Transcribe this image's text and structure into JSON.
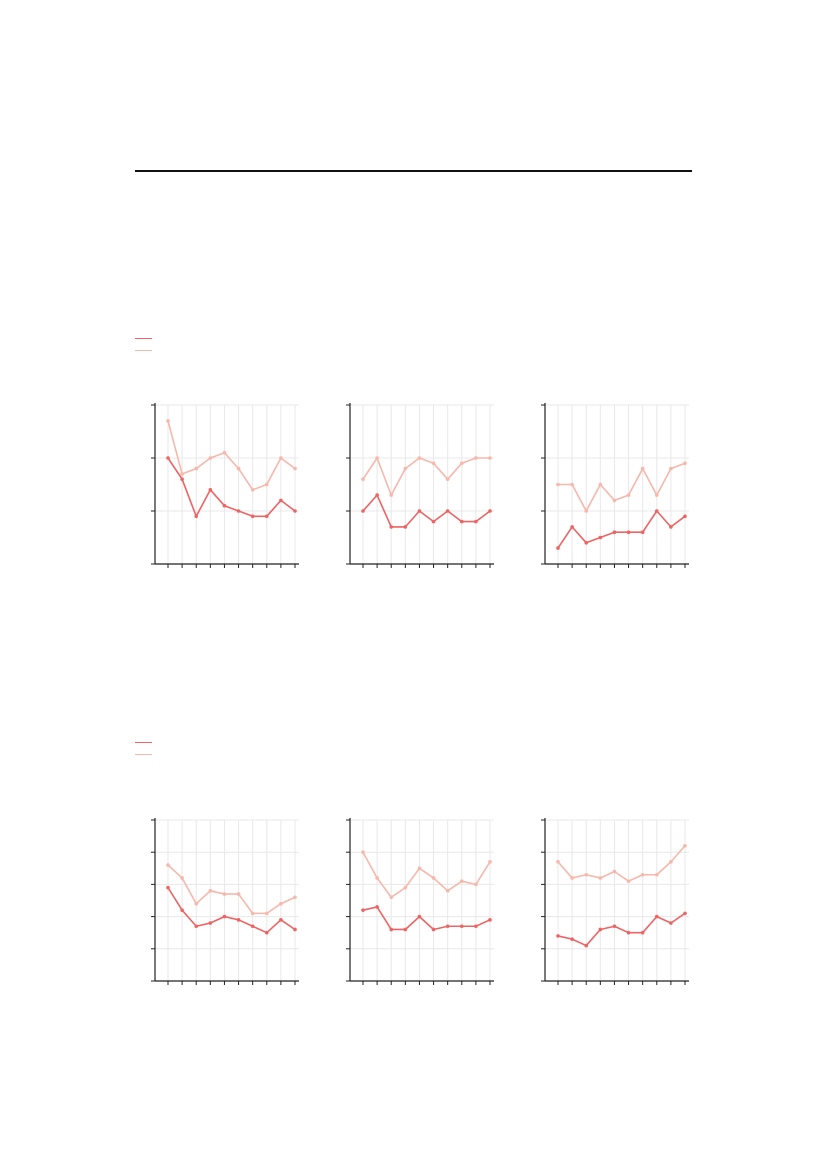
{
  "colors": {
    "series_dark": "#ee6363",
    "series_light": "#f7b7ab",
    "grid": "#e8e8e8",
    "axis": "#222222"
  },
  "chart_data": [
    {
      "type": "line",
      "x": [
        1,
        2,
        3,
        4,
        5,
        6,
        7,
        8,
        9,
        10
      ],
      "ylim": [
        0,
        3
      ],
      "yticks": [
        0,
        1,
        2,
        3
      ],
      "series": [
        {
          "values": [
            2.0,
            1.6,
            0.9,
            1.4,
            1.1,
            1.0,
            0.9,
            0.9,
            1.2,
            1.0
          ]
        },
        {
          "values": [
            2.7,
            1.7,
            1.8,
            2.0,
            2.1,
            1.8,
            1.4,
            1.5,
            2.0,
            1.8
          ]
        }
      ]
    },
    {
      "type": "line",
      "x": [
        1,
        2,
        3,
        4,
        5,
        6,
        7,
        8,
        9,
        10
      ],
      "ylim": [
        0,
        3
      ],
      "yticks": [
        0,
        1,
        2,
        3
      ],
      "series": [
        {
          "values": [
            1.0,
            1.3,
            0.7,
            0.7,
            1.0,
            0.8,
            1.0,
            0.8,
            0.8,
            1.0
          ]
        },
        {
          "values": [
            1.6,
            2.0,
            1.3,
            1.8,
            2.0,
            1.9,
            1.6,
            1.9,
            2.0,
            2.0
          ]
        }
      ]
    },
    {
      "type": "line",
      "x": [
        1,
        2,
        3,
        4,
        5,
        6,
        7,
        8,
        9,
        10
      ],
      "ylim": [
        0,
        3
      ],
      "yticks": [
        0,
        1,
        2,
        3
      ],
      "series": [
        {
          "values": [
            0.3,
            0.7,
            0.4,
            0.5,
            0.6,
            0.6,
            0.6,
            1.0,
            0.7,
            0.9
          ]
        },
        {
          "values": [
            1.5,
            1.5,
            1.0,
            1.5,
            1.2,
            1.3,
            1.8,
            1.3,
            1.8,
            1.9
          ]
        }
      ]
    },
    {
      "type": "line",
      "x": [
        1,
        2,
        3,
        4,
        5,
        6,
        7,
        8,
        9,
        10
      ],
      "ylim": [
        0,
        5
      ],
      "yticks": [
        0,
        1,
        2,
        3,
        4,
        5
      ],
      "series": [
        {
          "values": [
            2.9,
            2.2,
            1.7,
            1.8,
            2.0,
            1.9,
            1.7,
            1.5,
            1.9,
            1.6
          ]
        },
        {
          "values": [
            3.6,
            3.2,
            2.4,
            2.8,
            2.7,
            2.7,
            2.1,
            2.1,
            2.4,
            2.6
          ]
        }
      ]
    },
    {
      "type": "line",
      "x": [
        1,
        2,
        3,
        4,
        5,
        6,
        7,
        8,
        9,
        10
      ],
      "ylim": [
        0,
        5
      ],
      "yticks": [
        0,
        1,
        2,
        3,
        4,
        5
      ],
      "series": [
        {
          "values": [
            2.2,
            2.3,
            1.6,
            1.6,
            2.0,
            1.6,
            1.7,
            1.7,
            1.7,
            1.9
          ]
        },
        {
          "values": [
            4.0,
            3.2,
            2.6,
            2.9,
            3.5,
            3.2,
            2.8,
            3.1,
            3.0,
            3.7
          ]
        }
      ]
    },
    {
      "type": "line",
      "x": [
        1,
        2,
        3,
        4,
        5,
        6,
        7,
        8,
        9,
        10
      ],
      "ylim": [
        0,
        5
      ],
      "yticks": [
        0,
        1,
        2,
        3,
        4,
        5
      ],
      "series": [
        {
          "values": [
            1.4,
            1.3,
            1.1,
            1.6,
            1.7,
            1.5,
            1.5,
            2.0,
            1.8,
            2.1
          ]
        },
        {
          "values": [
            3.7,
            3.2,
            3.3,
            3.2,
            3.4,
            3.1,
            3.3,
            3.3,
            3.7,
            4.2
          ]
        }
      ]
    }
  ]
}
